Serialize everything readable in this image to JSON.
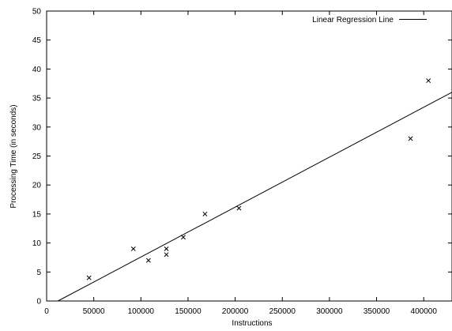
{
  "chart_data": {
    "type": "scatter",
    "title": "",
    "xlabel": "Instructions",
    "ylabel": "Processing Time (in seconds)",
    "xlim": [
      0,
      430000
    ],
    "ylim": [
      0,
      50
    ],
    "x_ticks": [
      0,
      50000,
      100000,
      150000,
      200000,
      250000,
      300000,
      350000,
      400000
    ],
    "y_ticks": [
      0,
      5,
      10,
      15,
      20,
      25,
      30,
      35,
      40,
      45,
      50
    ],
    "grid": false,
    "legend_position": "top-right",
    "series": [
      {
        "type": "scatter",
        "marker": "x",
        "points": [
          {
            "x": 45000,
            "y": 4
          },
          {
            "x": 92000,
            "y": 9
          },
          {
            "x": 108000,
            "y": 7
          },
          {
            "x": 127000,
            "y": 8
          },
          {
            "x": 127000,
            "y": 9
          },
          {
            "x": 145000,
            "y": 11
          },
          {
            "x": 168000,
            "y": 15
          },
          {
            "x": 204000,
            "y": 16
          },
          {
            "x": 386000,
            "y": 28
          },
          {
            "x": 405000,
            "y": 38
          }
        ]
      },
      {
        "type": "line",
        "name": "Linear Regression Line",
        "points": [
          {
            "x": 12000,
            "y": 0
          },
          {
            "x": 430000,
            "y": 36
          }
        ]
      }
    ],
    "legend": [
      {
        "label": "Linear Regression Line",
        "symbol": "line"
      }
    ],
    "colors": {
      "axis": "#000000",
      "marks": "#000000",
      "background": "#ffffff"
    }
  }
}
